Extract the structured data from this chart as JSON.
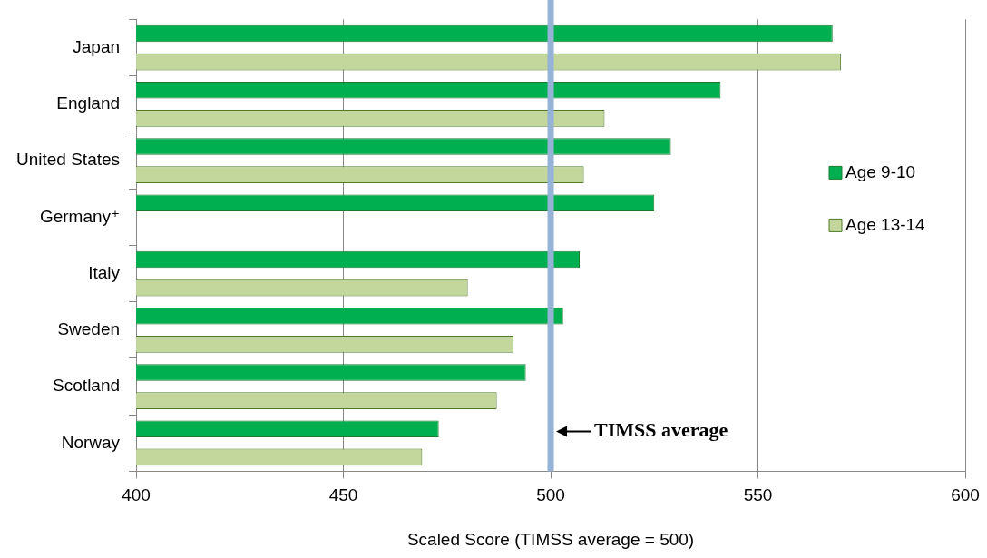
{
  "chart_data": {
    "type": "bar",
    "orientation": "horizontal",
    "xlabel": "Scaled Score (TIMSS average = 500)",
    "categories": [
      "Japan",
      "England",
      "United States",
      "Germany⁺",
      "Italy",
      "Sweden",
      "Scotland",
      "Norway"
    ],
    "series": [
      {
        "name": "Age 9-10",
        "color": "#00b050",
        "values": [
          568,
          541,
          529,
          525,
          507,
          503,
          494,
          473
        ]
      },
      {
        "name": "Age 13-14",
        "color": "#c3d69b",
        "values": [
          570,
          513,
          508,
          null,
          480,
          491,
          487,
          469
        ]
      }
    ],
    "xlim": [
      400,
      600
    ],
    "xticks": [
      400,
      450,
      500,
      550,
      600
    ],
    "grid": "x",
    "legend": "right",
    "ref_lines": [
      {
        "axis": "x",
        "value": 500,
        "label": "TIMSS average",
        "color": "#95b3d7"
      }
    ]
  }
}
